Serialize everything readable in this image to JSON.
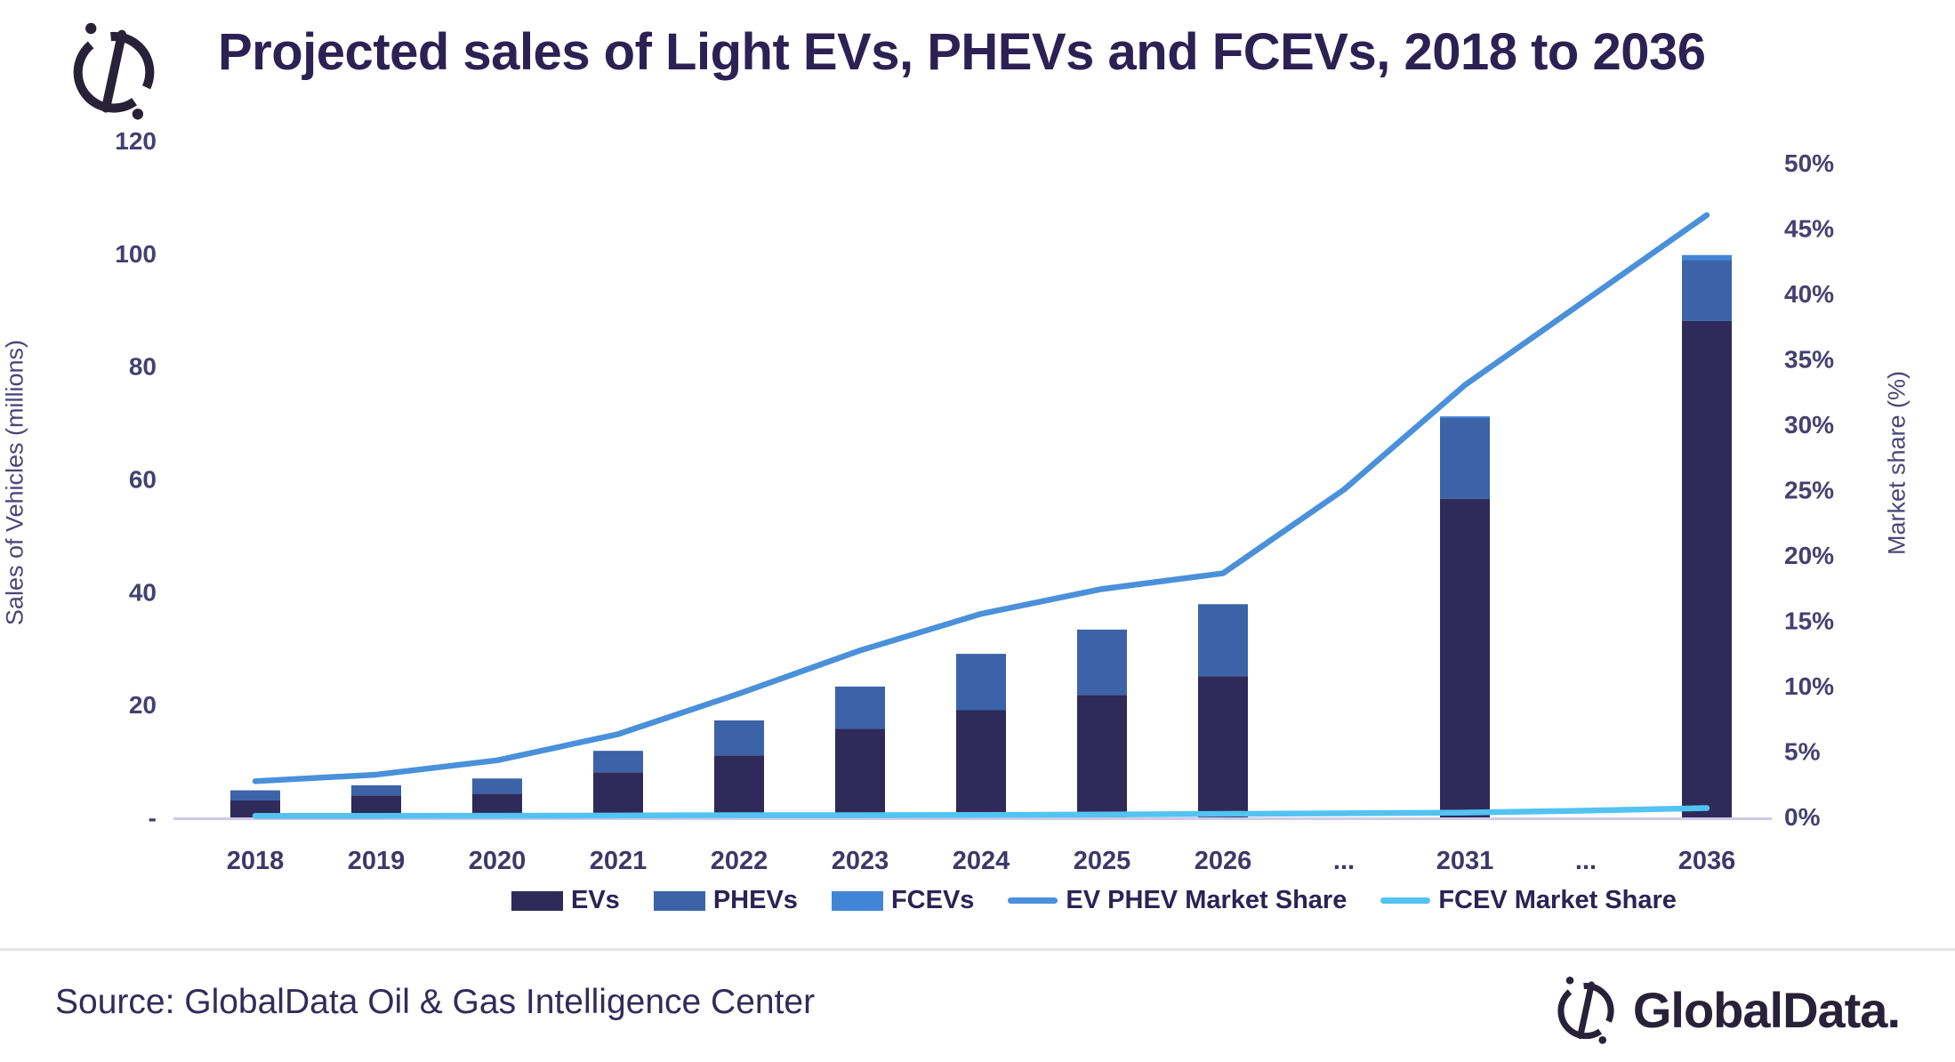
{
  "header": {
    "title": "Projected sales of Light EVs, PHEVs and FCEVs, 2018 to 2036"
  },
  "footer": {
    "source": "Source: GlobalData Oil & Gas Intelligence Center",
    "brand": "GlobalData."
  },
  "colors": {
    "evs_bar": "#2f2a59",
    "phevs_bar": "#3c63a8",
    "fcevs_bar": "#4186d6",
    "ev_phev_line": "#4a90da",
    "fcev_line": "#53c3f2",
    "axis_line": "#cfc9e6",
    "title_text": "#2b2153",
    "tick_text": "#454070"
  },
  "chart_data": {
    "type": "bar",
    "subtype": "stacked-bars-with-lines-combo",
    "title": "Projected sales of Light EVs, PHEVs and FCEVs, 2018 to 2036",
    "categories": [
      "2018",
      "2019",
      "2020",
      "2021",
      "2022",
      "2023",
      "2024",
      "2025",
      "2026",
      "...",
      "2031",
      "...",
      "2036"
    ],
    "series": [
      {
        "name": "EVs",
        "type": "bar",
        "axis": "left",
        "color": "#2f2a59",
        "values": [
          3.0,
          3.9,
          4.2,
          8.0,
          11.0,
          15.7,
          19.0,
          21.7,
          25.0,
          null,
          56.5,
          null,
          88.0
        ]
      },
      {
        "name": "PHEVs",
        "type": "bar",
        "axis": "left",
        "color": "#3c63a8",
        "values": [
          1.8,
          1.8,
          2.7,
          3.8,
          6.2,
          7.5,
          10.0,
          11.6,
          12.8,
          null,
          14.3,
          null,
          10.8
        ]
      },
      {
        "name": "FCEVs",
        "type": "bar",
        "axis": "left",
        "color": "#4186d6",
        "values": [
          0,
          0,
          0,
          0,
          0,
          0,
          0,
          0,
          0,
          null,
          0.3,
          null,
          0.9
        ]
      },
      {
        "name": "EV PHEV Market Share",
        "type": "line",
        "axis": "right",
        "color": "#4a90da",
        "values": [
          2.7,
          3.2,
          4.3,
          6.3,
          9.4,
          12.7,
          15.5,
          17.4,
          18.6,
          25.0,
          33.0,
          39.5,
          46.0
        ]
      },
      {
        "name": "FCEV Market Share",
        "type": "line",
        "axis": "right",
        "color": "#53c3f2",
        "values": [
          0.05,
          0.05,
          0.06,
          0.08,
          0.1,
          0.1,
          0.12,
          0.15,
          0.2,
          0.25,
          0.3,
          0.45,
          0.65
        ]
      }
    ],
    "left_axis": {
      "title": "Sales of Vehicles (millions)",
      "range": [
        0,
        120
      ],
      "tick_values": [
        120,
        100,
        80,
        60,
        40,
        20,
        0
      ],
      "tick_labels": [
        "120",
        "100",
        "80",
        "60",
        "40",
        "20",
        "-"
      ]
    },
    "right_axis": {
      "title": "Market share (%)",
      "range": [
        0,
        50
      ],
      "tick_values": [
        50,
        45,
        40,
        35,
        30,
        25,
        20,
        15,
        10,
        5,
        0
      ],
      "tick_labels": [
        "50%",
        "45%",
        "40%",
        "35%",
        "30%",
        "25%",
        "20%",
        "15%",
        "10%",
        "5%",
        "0%"
      ]
    },
    "grid": false,
    "legend_position": "bottom"
  }
}
